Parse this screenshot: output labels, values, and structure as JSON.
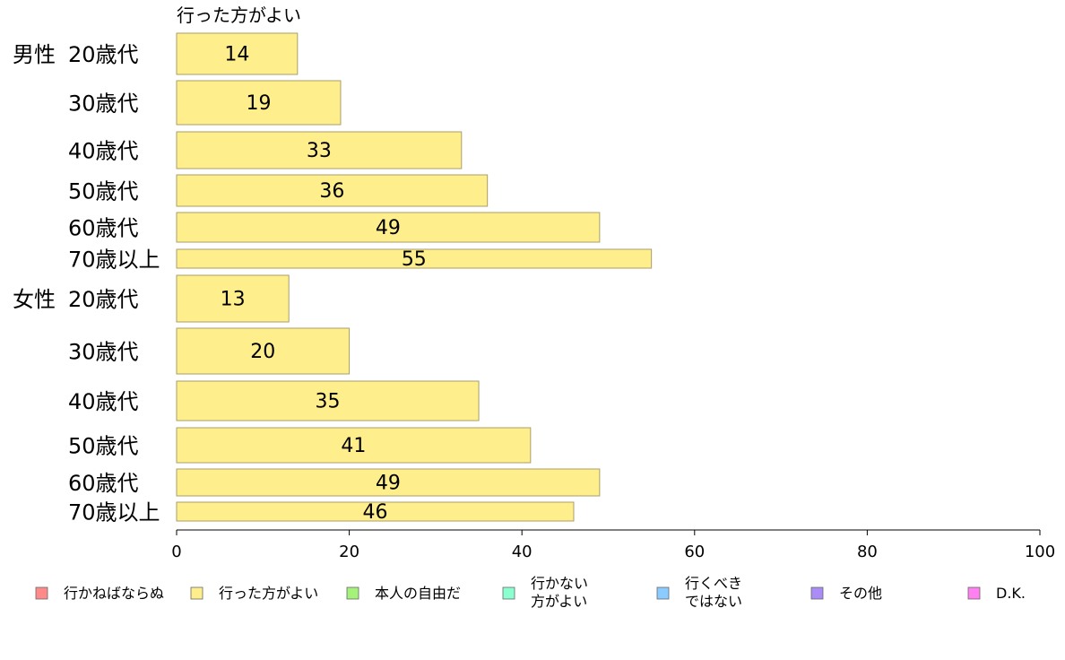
{
  "chart_data": {
    "type": "bar",
    "orientation": "horizontal",
    "series_title": "行った方がよい",
    "series": [
      {
        "name": "行った方がよい",
        "color": "#ffee8c",
        "values": [
          14,
          19,
          33,
          36,
          49,
          55,
          13,
          20,
          35,
          41,
          49,
          46
        ]
      }
    ],
    "groups": [
      {
        "label": "男性",
        "categories": [
          "20歳代",
          "30歳代",
          "40歳代",
          "50歳代",
          "60歳代",
          "70歳以上"
        ]
      },
      {
        "label": "女性",
        "categories": [
          "20歳代",
          "30歳代",
          "40歳代",
          "50歳代",
          "60歳代",
          "70歳以上"
        ]
      }
    ],
    "xlim": [
      0,
      100
    ],
    "xticks": [
      "0",
      "20",
      "40",
      "60",
      "80",
      "100"
    ],
    "grid": false,
    "legend_position": "bottom",
    "legend": [
      {
        "lines": [
          "行かねばならぬ"
        ],
        "color": "#ff8a8a"
      },
      {
        "lines": [
          "行った方がよい"
        ],
        "color": "#ffee8c"
      },
      {
        "lines": [
          "本人の自由だ"
        ],
        "color": "#a4f27a"
      },
      {
        "lines": [
          "行かない",
          "方がよい"
        ],
        "color": "#8affd0"
      },
      {
        "lines": [
          "行くべき",
          "ではない"
        ],
        "color": "#8accff"
      },
      {
        "lines": [
          "その他"
        ],
        "color": "#a98cf5"
      },
      {
        "lines": [
          "D.K."
        ],
        "color": "#ff80f0"
      }
    ]
  }
}
